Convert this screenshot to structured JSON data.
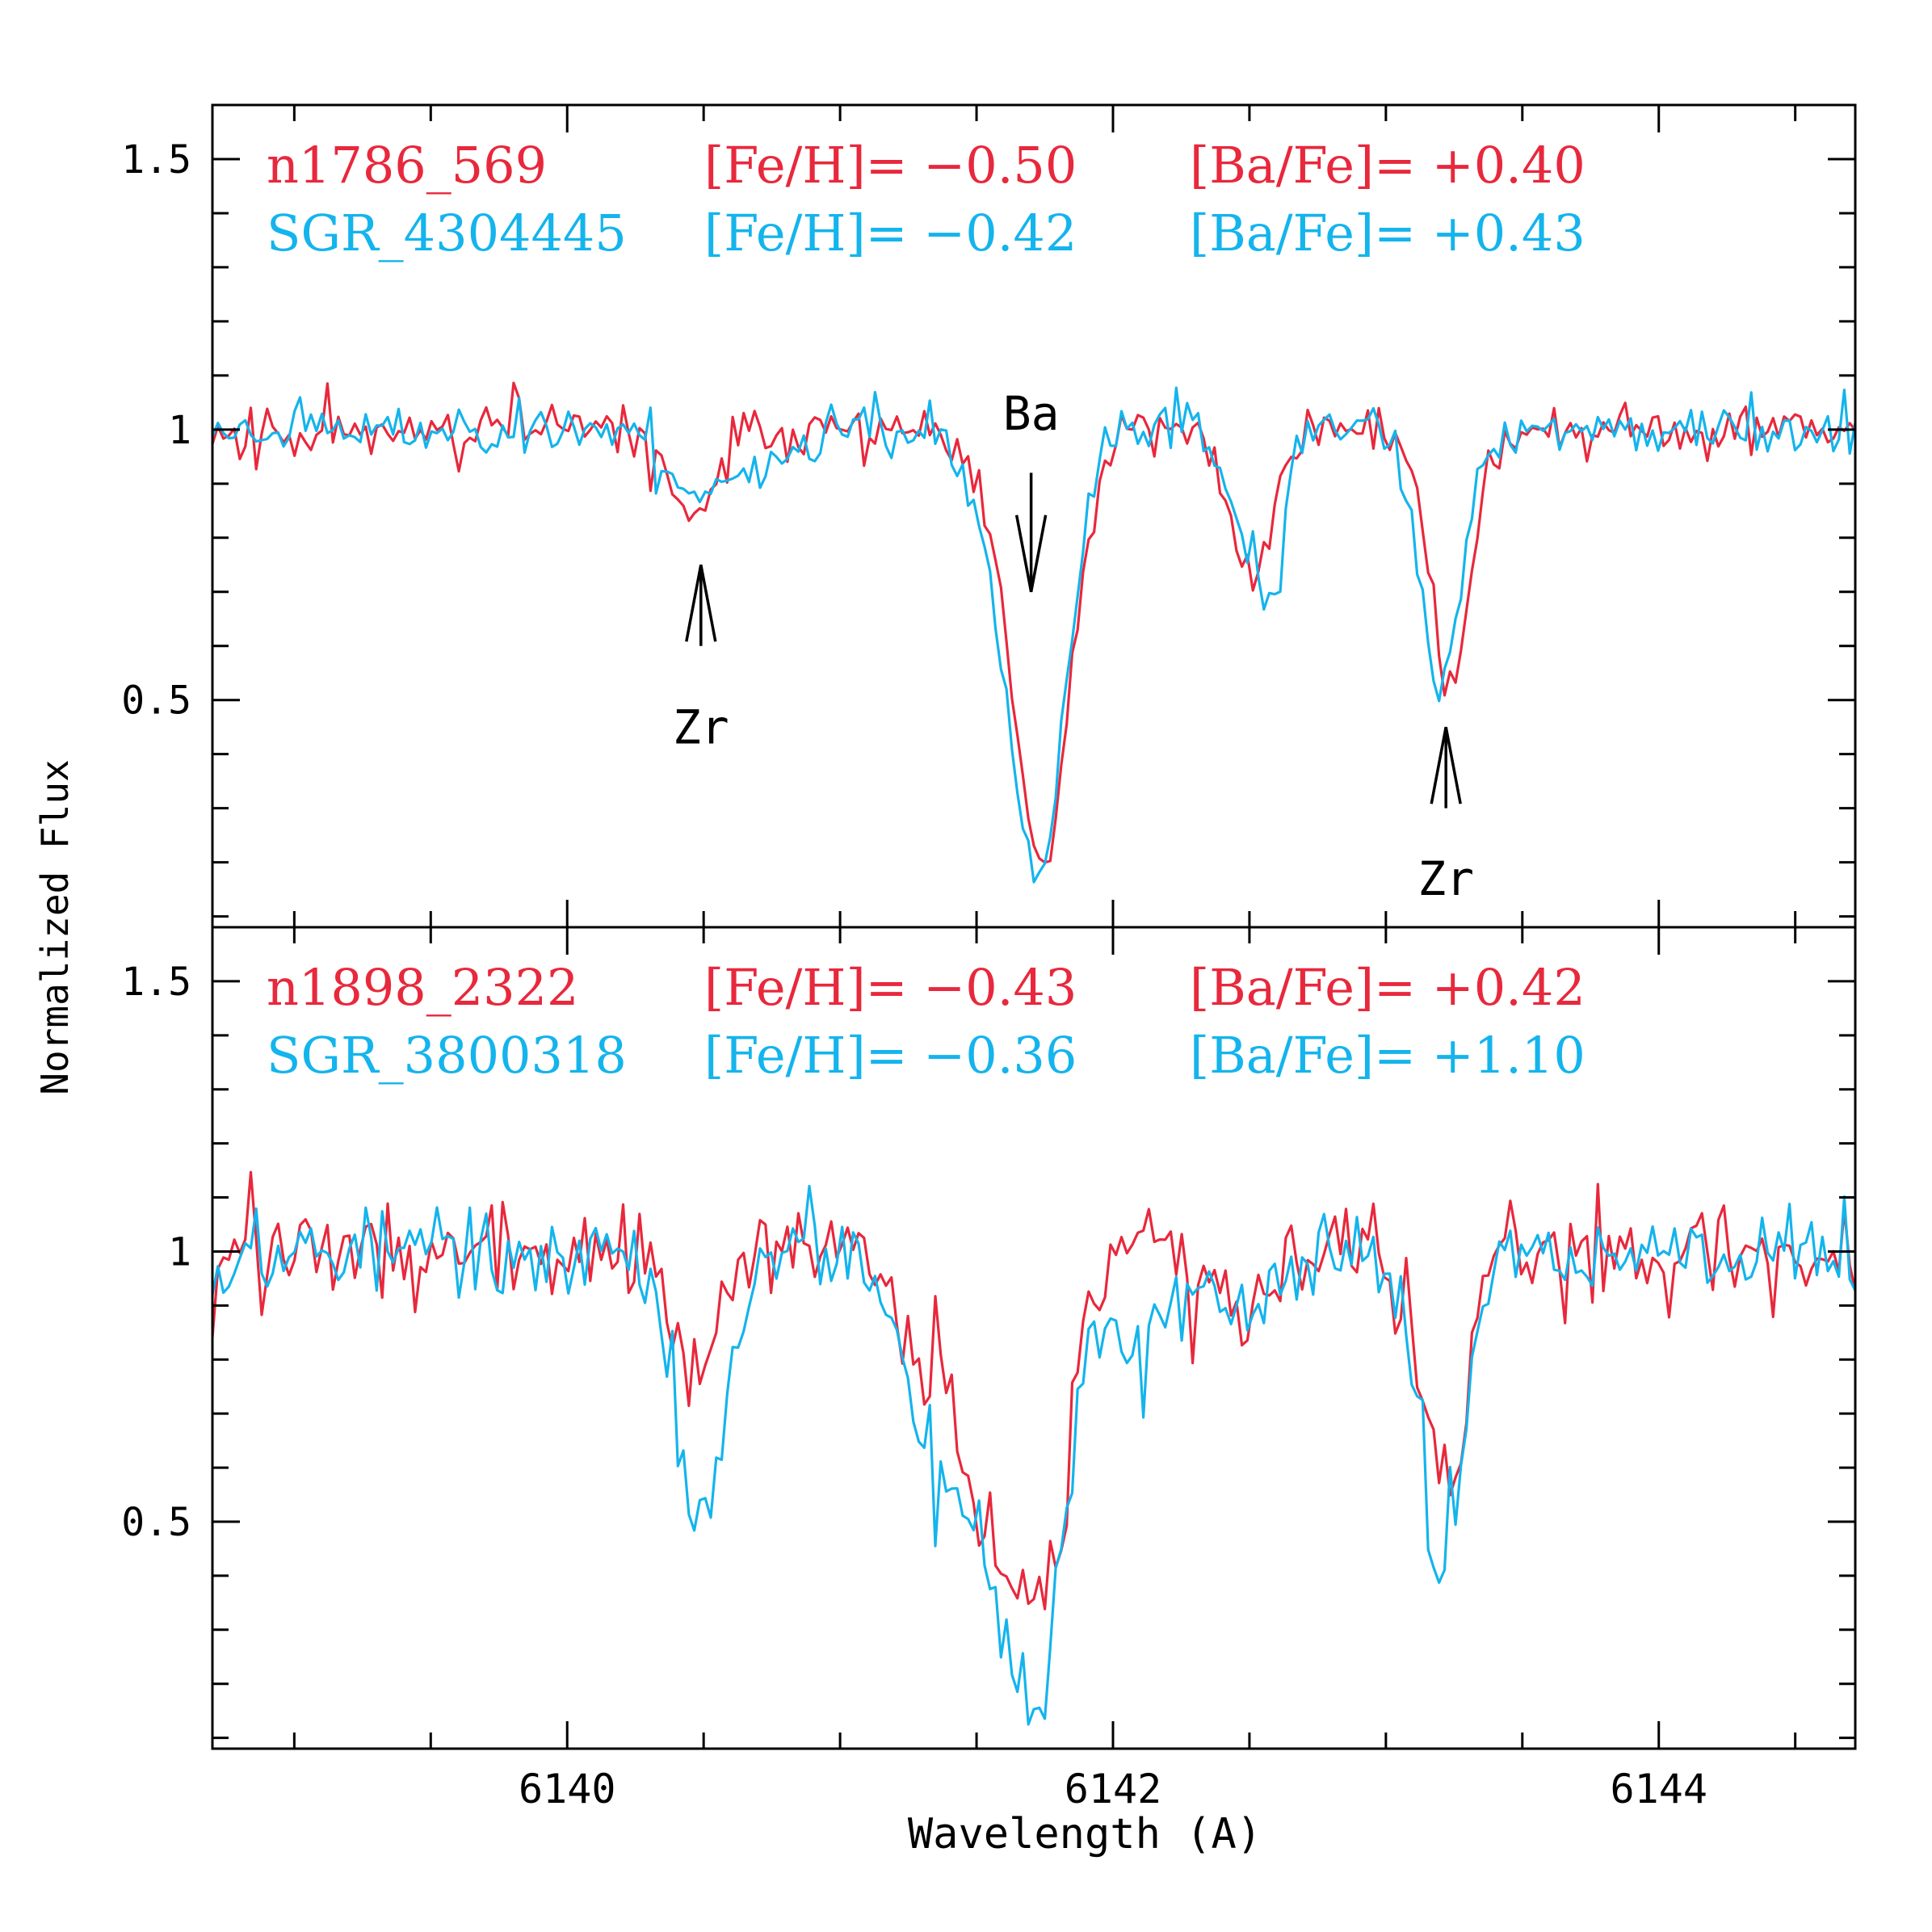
{
  "colors": {
    "red": "#e8283c",
    "blue": "#14b4ec",
    "axis": "#000000"
  },
  "chart_data": {
    "type": "line",
    "xlabel": "Wavelength (A)",
    "ylabel": "Normalized Flux",
    "xlim": [
      6138.7,
      6144.72
    ],
    "xticks_major": [
      6140,
      6142,
      6144
    ],
    "xticks_major_labels": [
      "6140",
      "6142",
      "6144"
    ],
    "xtick_minor_step": 0.5,
    "panels": [
      {
        "ylim": [
          0.08,
          1.6
        ],
        "yticks_major": [
          0.5,
          1.0,
          1.5
        ],
        "yticks_major_labels": [
          "0.5",
          "1",
          "1.5"
        ],
        "ytick_minor_step": 0.1,
        "legend": [
          {
            "star": "n1786_569",
            "feh": "[Fe/H]= −0.50",
            "bafe": "[Ba/Fe]= +0.40",
            "color": "red"
          },
          {
            "star": "SGR_4304445",
            "feh": "[Fe/H]= −0.42",
            "bafe": "[Ba/Fe]= +0.43",
            "color": "blue"
          }
        ],
        "annotations": [
          {
            "label": "Zr",
            "x": 6140.49,
            "arrow_y": [
              0.6,
              0.75
            ],
            "direction": "up",
            "label_y": 0.42
          },
          {
            "label": "Ba",
            "x": 6141.7,
            "arrow_y": [
              0.92,
              0.7
            ],
            "direction": "down",
            "label_y": 1.0
          },
          {
            "label": "Zr",
            "x": 6143.22,
            "arrow_y": [
              0.3,
              0.45
            ],
            "direction": "up",
            "label_y": 0.14
          }
        ],
        "series": [
          {
            "name": "n1786_569",
            "color": "red",
            "seed": 11,
            "noise": 0.03,
            "lines": [
              {
                "c": 6140.44,
                "d": 0.13,
                "w": 0.08
              },
              {
                "c": 6140.52,
                "d": 0.06,
                "w": 0.06
              },
              {
                "c": 6141.74,
                "d": 0.8,
                "w": 0.105
              },
              {
                "c": 6141.5,
                "d": 0.06,
                "w": 0.09
              },
              {
                "c": 6142.4,
                "d": 0.05,
                "w": 0.06
              },
              {
                "c": 6142.48,
                "d": 0.18,
                "w": 0.05
              },
              {
                "c": 6142.56,
                "d": 0.17,
                "w": 0.05
              },
              {
                "c": 6143.24,
                "d": 0.47,
                "w": 0.075
              }
            ]
          },
          {
            "name": "SGR_4304445",
            "color": "blue",
            "seed": 23,
            "noise": 0.03,
            "lines": [
              {
                "c": 6140.46,
                "d": 0.12,
                "w": 0.08
              },
              {
                "c": 6140.7,
                "d": 0.06,
                "w": 0.15
              },
              {
                "c": 6141.72,
                "d": 0.82,
                "w": 0.105
              },
              {
                "c": 6141.5,
                "d": 0.08,
                "w": 0.09
              },
              {
                "c": 6142.42,
                "d": 0.08,
                "w": 0.07
              },
              {
                "c": 6142.52,
                "d": 0.18,
                "w": 0.05
              },
              {
                "c": 6142.59,
                "d": 0.23,
                "w": 0.05
              },
              {
                "c": 6143.2,
                "d": 0.48,
                "w": 0.075
              }
            ]
          }
        ]
      },
      {
        "ylim": [
          0.08,
          1.6
        ],
        "yticks_major": [
          0.5,
          1.0,
          1.5
        ],
        "yticks_major_labels": [
          "0.5",
          "1",
          "1.5"
        ],
        "ytick_minor_step": 0.1,
        "legend": [
          {
            "star": "n1898_2322",
            "feh": "[Fe/H]= −0.43",
            "bafe": "[Ba/Fe]= +0.42",
            "color": "red"
          },
          {
            "star": "SGR_3800318",
            "feh": "[Fe/H]= −0.36",
            "bafe": "[Ba/Fe]= +1.10",
            "color": "blue"
          }
        ],
        "annotations": [],
        "series": [
          {
            "name": "n1898_2322",
            "color": "red",
            "seed": 37,
            "noise": 0.06,
            "lines": [
              {
                "c": 6140.48,
                "d": 0.25,
                "w": 0.08
              },
              {
                "c": 6141.6,
                "d": 0.55,
                "w": 0.15
              },
              {
                "c": 6141.78,
                "d": 0.35,
                "w": 0.08
              },
              {
                "c": 6141.3,
                "d": 0.12,
                "w": 0.08
              },
              {
                "c": 6142.5,
                "d": 0.1,
                "w": 0.12
              },
              {
                "c": 6143.22,
                "d": 0.45,
                "w": 0.08
              }
            ]
          },
          {
            "name": "SGR_3800318",
            "color": "blue",
            "seed": 53,
            "noise": 0.055,
            "lines": [
              {
                "c": 6140.46,
                "d": 0.45,
                "w": 0.07
              },
              {
                "c": 6140.58,
                "d": 0.2,
                "w": 0.08
              },
              {
                "c": 6141.6,
                "d": 0.62,
                "w": 0.16
              },
              {
                "c": 6141.75,
                "d": 0.4,
                "w": 0.08
              },
              {
                "c": 6141.3,
                "d": 0.2,
                "w": 0.1
              },
              {
                "c": 6142.1,
                "d": 0.15,
                "w": 0.12
              },
              {
                "c": 6142.5,
                "d": 0.12,
                "w": 0.12
              },
              {
                "c": 6143.2,
                "d": 0.62,
                "w": 0.08
              }
            ]
          }
        ]
      }
    ]
  }
}
